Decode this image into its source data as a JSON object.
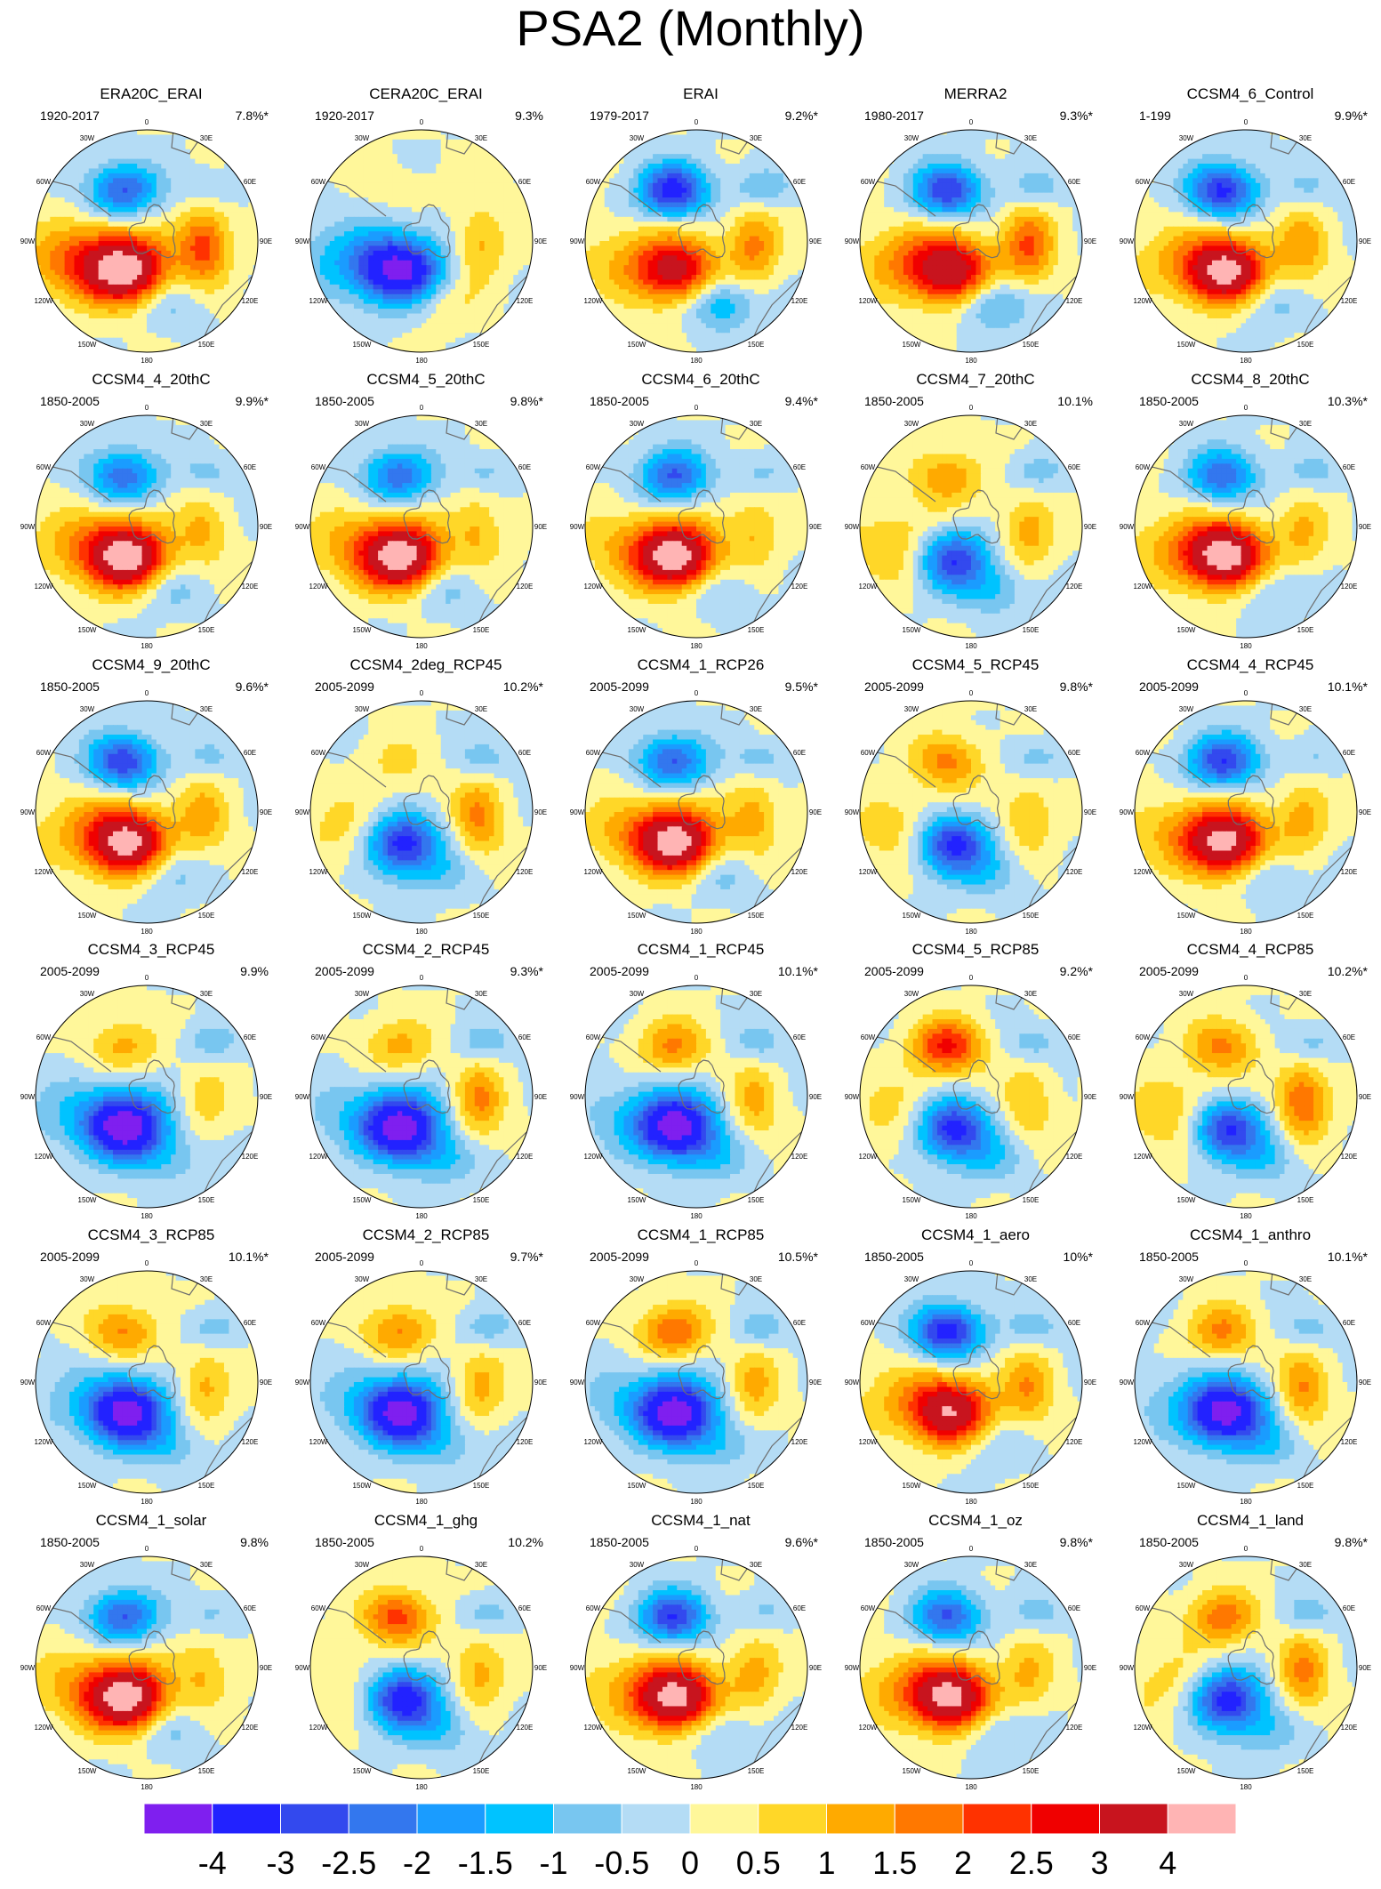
{
  "title": "PSA2 (Monthly)",
  "chart_data": {
    "type": "heatmap",
    "projection": "south-polar-stereographic",
    "longitude_labels": [
      "0",
      "30E",
      "60E",
      "90E",
      "120E",
      "150E",
      "180",
      "150W",
      "120W",
      "90W",
      "60W",
      "30W"
    ],
    "panels": [
      {
        "name": "ERA20C_ERAI",
        "period": "1920-2017",
        "variance": "7.8%*",
        "pattern": {
          "A": -2.6,
          "B": 3.2,
          "C": 2.2,
          "D": 2.4,
          "E": -0.8,
          "F": -0.6
        }
      },
      {
        "name": "CERA20C_ERAI",
        "period": "1920-2017",
        "variance": "9.3%",
        "pattern": {
          "A": 0.3,
          "B": -3.2,
          "C": 1.2,
          "D": -1.8,
          "E": 0.6,
          "F": 0.3
        }
      },
      {
        "name": "ERAI",
        "period": "1979-2017",
        "variance": "9.2%*",
        "pattern": {
          "A": -3.4,
          "B": 2.6,
          "C": 1.6,
          "D": 1.2,
          "E": -1.6,
          "F": -1.0
        }
      },
      {
        "name": "MERRA2",
        "period": "1980-2017",
        "variance": "9.3%*",
        "pattern": {
          "A": -3.0,
          "B": 2.8,
          "C": 2.0,
          "D": 1.6,
          "E": -1.4,
          "F": -0.8
        }
      },
      {
        "name": "CCSM4_6_Control",
        "period": "1-199",
        "variance": "9.9%*",
        "pattern": {
          "A": -3.2,
          "B": 3.8,
          "C": 1.3,
          "D": 1.2,
          "E": -0.8,
          "F": -0.6
        }
      },
      {
        "name": "CCSM4_4_20thC",
        "period": "1850-2005",
        "variance": "9.9%*",
        "pattern": {
          "A": -2.4,
          "B": 3.9,
          "C": 1.0,
          "D": 1.4,
          "E": -0.8,
          "F": -0.7
        }
      },
      {
        "name": "CCSM4_5_20thC",
        "period": "1850-2005",
        "variance": "9.8%*",
        "pattern": {
          "A": -2.4,
          "B": 3.9,
          "C": 1.0,
          "D": 1.4,
          "E": -0.8,
          "F": -0.7
        }
      },
      {
        "name": "CCSM4_6_20thC",
        "period": "1850-2005",
        "variance": "9.4%*",
        "pattern": {
          "A": -2.6,
          "B": 3.9,
          "C": 1.0,
          "D": 1.3,
          "E": -0.8,
          "F": -0.7
        }
      },
      {
        "name": "CCSM4_7_20thC",
        "period": "1850-2005",
        "variance": "10.1%",
        "pattern": {
          "A": 1.4,
          "B": -3.8,
          "C": 1.2,
          "D": 1.4,
          "E": -1.0,
          "F": -0.8
        }
      },
      {
        "name": "CCSM4_8_20thC",
        "period": "1850-2005",
        "variance": "10.3%*",
        "pattern": {
          "A": -2.4,
          "B": 3.9,
          "C": 1.0,
          "D": 1.4,
          "E": -0.8,
          "F": -0.7
        }
      },
      {
        "name": "CCSM4_9_20thC",
        "period": "1850-2005",
        "variance": "9.6%*",
        "pattern": {
          "A": -3.0,
          "B": 3.8,
          "C": 1.2,
          "D": 1.2,
          "E": -0.8,
          "F": -0.6
        }
      },
      {
        "name": "CCSM4_2deg_RCP45",
        "period": "2005-2099",
        "variance": "10.2%*",
        "pattern": {
          "A": 0.6,
          "B": -4.0,
          "C": 1.6,
          "D": 1.0,
          "E": -0.6,
          "F": -0.8
        }
      },
      {
        "name": "CCSM4_1_RCP26",
        "period": "2005-2099",
        "variance": "9.5%*",
        "pattern": {
          "A": -2.6,
          "B": 3.8,
          "C": 1.2,
          "D": 1.3,
          "E": -0.8,
          "F": -0.8
        }
      },
      {
        "name": "CCSM4_5_RCP45",
        "period": "2005-2099",
        "variance": "9.8%*",
        "pattern": {
          "A": 1.6,
          "B": -4.0,
          "C": 1.0,
          "D": 1.2,
          "E": -0.7,
          "F": -0.8
        }
      },
      {
        "name": "CCSM4_4_RCP45",
        "period": "2005-2099",
        "variance": "10.1%*",
        "pattern": {
          "A": -3.0,
          "B": 3.6,
          "C": 1.2,
          "D": 1.3,
          "E": -0.8,
          "F": -0.6
        }
      },
      {
        "name": "CCSM4_3_RCP45",
        "period": "2005-2099",
        "variance": "9.9%",
        "pattern": {
          "A": 1.2,
          "B": -4.0,
          "C": 0.8,
          "D": -1.2,
          "E": -0.7,
          "F": -0.8
        }
      },
      {
        "name": "CCSM4_2_RCP45",
        "period": "2005-2099",
        "variance": "9.3%*",
        "pattern": {
          "A": 1.2,
          "B": -4.0,
          "C": 1.6,
          "D": -1.0,
          "E": -1.0,
          "F": -0.8
        }
      },
      {
        "name": "CCSM4_1_RCP45",
        "period": "2005-2099",
        "variance": "10.1%*",
        "pattern": {
          "A": 1.6,
          "B": -4.0,
          "C": 1.2,
          "D": -1.0,
          "E": -0.8,
          "F": -0.8
        }
      },
      {
        "name": "CCSM4_5_RCP85",
        "period": "2005-2099",
        "variance": "9.2%*",
        "pattern": {
          "A": 2.6,
          "B": -4.0,
          "C": 1.0,
          "D": 1.0,
          "E": -0.8,
          "F": -0.8
        }
      },
      {
        "name": "CCSM4_4_RCP85",
        "period": "2005-2099",
        "variance": "10.2%*",
        "pattern": {
          "A": 1.6,
          "B": -4.0,
          "C": 2.0,
          "D": 1.4,
          "E": -0.8,
          "F": -0.8
        }
      },
      {
        "name": "CCSM4_3_RCP85",
        "period": "2005-2099",
        "variance": "10.1%*",
        "pattern": {
          "A": 1.6,
          "B": -4.0,
          "C": 1.2,
          "D": -0.8,
          "E": -0.8,
          "F": -0.8
        }
      },
      {
        "name": "CCSM4_2_RCP85",
        "period": "2005-2099",
        "variance": "9.7%*",
        "pattern": {
          "A": 1.6,
          "B": -4.0,
          "C": 1.2,
          "D": -0.8,
          "E": -0.8,
          "F": -0.8
        }
      },
      {
        "name": "CCSM4_1_RCP85",
        "period": "2005-2099",
        "variance": "10.5%*",
        "pattern": {
          "A": 2.0,
          "B": -4.0,
          "C": 1.2,
          "D": -1.0,
          "E": -0.8,
          "F": -0.8
        }
      },
      {
        "name": "CCSM4_1_aero",
        "period": "1850-2005",
        "variance": "10%*",
        "pattern": {
          "A": -3.4,
          "B": 3.2,
          "C": 1.4,
          "D": 1.2,
          "E": -0.7,
          "F": -0.8
        }
      },
      {
        "name": "CCSM4_1_anthro",
        "period": "1850-2005",
        "variance": "10.1%*",
        "pattern": {
          "A": 1.6,
          "B": -4.0,
          "C": 1.6,
          "D": -0.8,
          "E": -0.8,
          "F": -0.8
        }
      },
      {
        "name": "CCSM4_1_solar",
        "period": "1850-2005",
        "variance": "9.8%",
        "pattern": {
          "A": -2.6,
          "B": 3.9,
          "C": 1.0,
          "D": 1.4,
          "E": -0.8,
          "F": -0.7
        }
      },
      {
        "name": "CCSM4_1_ghg",
        "period": "1850-2005",
        "variance": "10.2%",
        "pattern": {
          "A": 2.2,
          "B": -4.0,
          "C": 1.2,
          "D": 0.8,
          "E": -0.8,
          "F": -0.8
        }
      },
      {
        "name": "CCSM4_1_nat",
        "period": "1850-2005",
        "variance": "9.6%*",
        "pattern": {
          "A": -3.0,
          "B": 3.8,
          "C": 1.2,
          "D": 1.2,
          "E": -0.8,
          "F": -0.6
        }
      },
      {
        "name": "CCSM4_1_oz",
        "period": "1850-2005",
        "variance": "9.8%*",
        "pattern": {
          "A": -2.6,
          "B": 3.6,
          "C": 1.0,
          "D": 1.4,
          "E": -0.8,
          "F": -0.7
        }
      },
      {
        "name": "CCSM4_1_land",
        "period": "1850-2005",
        "variance": "9.8%*",
        "pattern": {
          "A": 1.8,
          "B": -4.0,
          "C": 1.6,
          "D": 1.0,
          "E": -0.8,
          "F": -0.8
        }
      }
    ],
    "colorbar": {
      "levels": [
        -4,
        -3,
        -2.5,
        -2,
        -1.5,
        -1,
        -0.5,
        0,
        0.5,
        1,
        1.5,
        2,
        2.5,
        3,
        4
      ],
      "labels": [
        "-4",
        "-3",
        "-2.5",
        "-2",
        "-1.5",
        "-1",
        "-0.5",
        "0",
        "0.5",
        "1",
        "1.5",
        "2",
        "2.5",
        "3",
        "4"
      ],
      "colors": [
        "#7f1fef",
        "#2222ff",
        "#3349ee",
        "#3377ee",
        "#1a9cff",
        "#00c3ff",
        "#78c6f0",
        "#b4dcf5",
        "#fff79a",
        "#ffd728",
        "#ffaa00",
        "#ff7800",
        "#ff3200",
        "#f00000",
        "#c8141e",
        "#ffb4b4"
      ]
    }
  }
}
